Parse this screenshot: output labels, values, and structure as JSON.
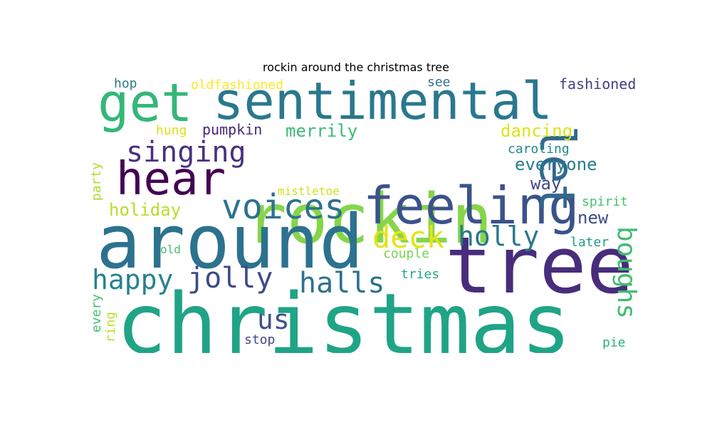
{
  "title": "rockin around the christmas tree",
  "words": [
    {
      "text": "christmas",
      "color": "#20a486"
    },
    {
      "text": "rockin",
      "color": "#86d549"
    },
    {
      "text": "around",
      "color": "#2c728e"
    },
    {
      "text": "tree",
      "color": "#472d7b"
    },
    {
      "text": "feeling",
      "color": "#3b528b"
    },
    {
      "text": "get",
      "color": "#35b779"
    },
    {
      "text": "sentimental",
      "color": "#2a788e"
    },
    {
      "text": "let",
      "color": "#31688e"
    },
    {
      "text": "hear",
      "color": "#440154"
    },
    {
      "text": "voices",
      "color": "#2c728e"
    },
    {
      "text": "singing",
      "color": "#46327e"
    },
    {
      "text": "deck",
      "color": "#e3e418"
    },
    {
      "text": "holly",
      "color": "#2a788e"
    },
    {
      "text": "halls",
      "color": "#2c728e"
    },
    {
      "text": "jolly",
      "color": "#3e4989"
    },
    {
      "text": "happy",
      "color": "#26828e"
    },
    {
      "text": "us",
      "color": "#3b528b"
    },
    {
      "text": "boughs",
      "color": "#3fbc73"
    },
    {
      "text": "holiday",
      "color": "#b5de2b"
    },
    {
      "text": "dancing",
      "color": "#dde318"
    },
    {
      "text": "everyone",
      "color": "#287d8e"
    },
    {
      "text": "merrily",
      "color": "#3aba76"
    },
    {
      "text": "way",
      "color": "#3e4989"
    },
    {
      "text": "new",
      "color": "#3e4a89"
    },
    {
      "text": "oldfashioned",
      "color": "#fde725"
    },
    {
      "text": "hop",
      "color": "#2a788e"
    },
    {
      "text": "see",
      "color": "#2c728e"
    },
    {
      "text": "fashioned",
      "color": "#424086"
    },
    {
      "text": "hung",
      "color": "#d8e219"
    },
    {
      "text": "pumpkin",
      "color": "#482878"
    },
    {
      "text": "caroling",
      "color": "#23888e"
    },
    {
      "text": "party",
      "color": "#addc30"
    },
    {
      "text": "mistletoe",
      "color": "#d0e11c"
    },
    {
      "text": "spirit",
      "color": "#4ac16d"
    },
    {
      "text": "later",
      "color": "#1f9e89"
    },
    {
      "text": "old",
      "color": "#44bf70"
    },
    {
      "text": "couple",
      "color": "#7ad151"
    },
    {
      "text": "tries",
      "color": "#22a785"
    },
    {
      "text": "every",
      "color": "#44bf70"
    },
    {
      "text": "ring",
      "color": "#bddf26"
    },
    {
      "text": "stop",
      "color": "#3e4989"
    },
    {
      "text": "pie",
      "color": "#2db27d"
    }
  ]
}
